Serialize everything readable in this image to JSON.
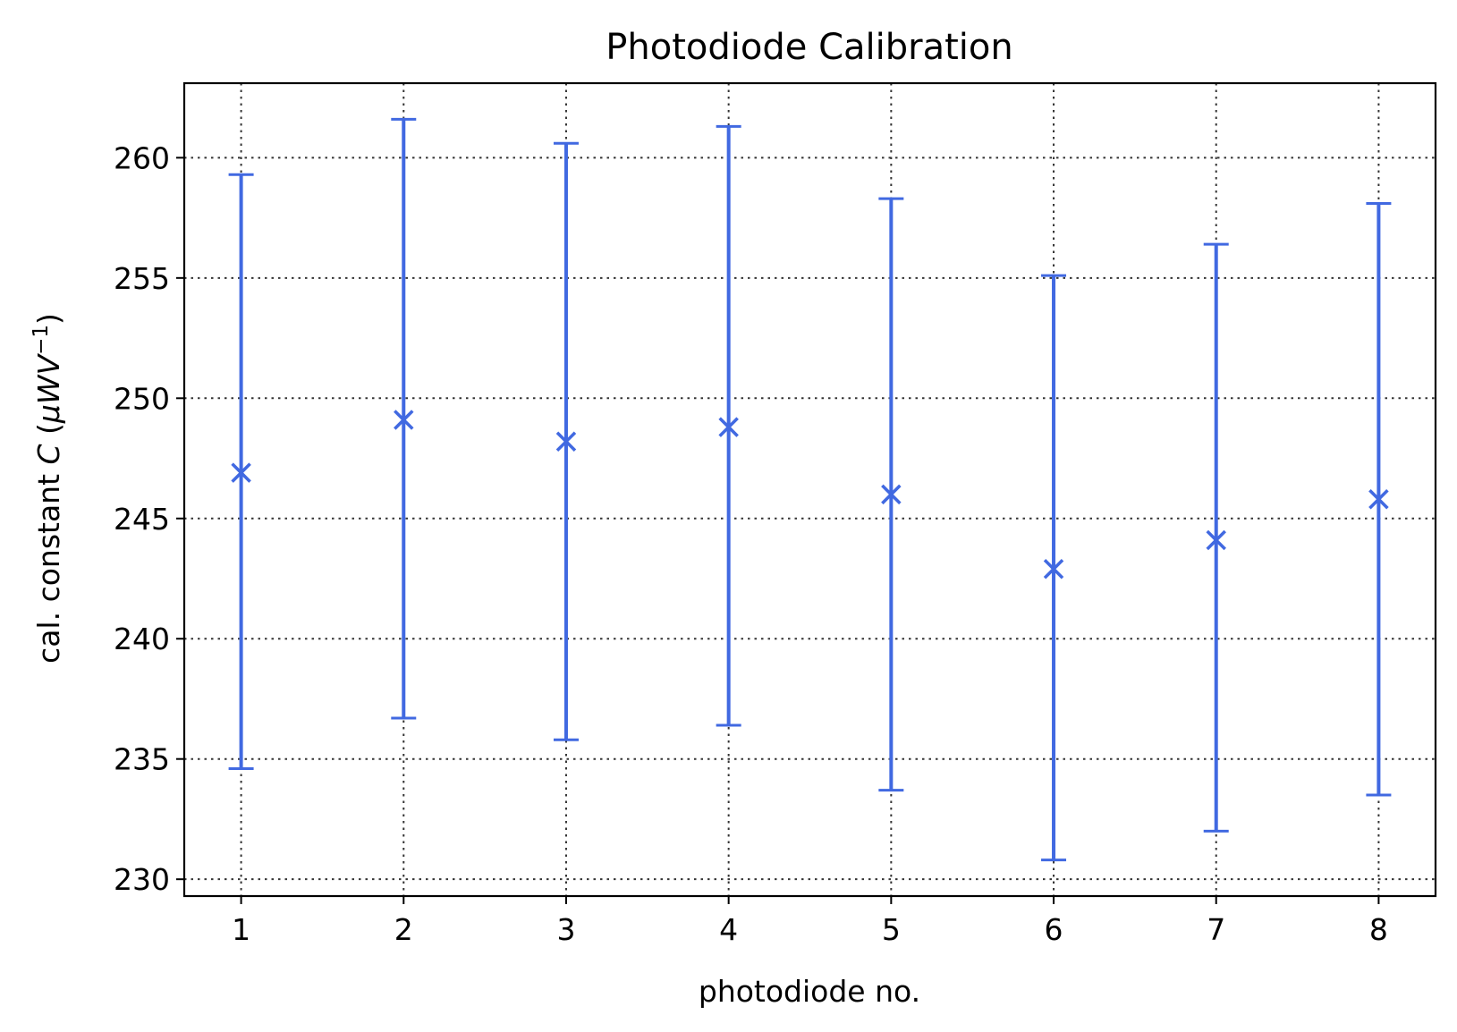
{
  "chart_data": {
    "type": "scatter",
    "title": "Photodiode Calibration",
    "xlabel": "photodiode no.",
    "ylabel_prefix": "cal. constant ",
    "ylabel_var": "C",
    "ylabel_open": " (",
    "ylabel_mu": "μ",
    "ylabel_w": "W",
    "ylabel_v": "V",
    "ylabel_exp": "−1",
    "ylabel_close": ")",
    "x": [
      1,
      2,
      3,
      4,
      5,
      6,
      7,
      8
    ],
    "y": [
      246.9,
      249.1,
      248.2,
      248.8,
      246.0,
      242.9,
      244.1,
      245.8
    ],
    "yerr_low": [
      234.6,
      236.7,
      235.8,
      236.4,
      233.7,
      230.8,
      232.0,
      233.5
    ],
    "yerr_high": [
      259.3,
      261.6,
      260.6,
      261.3,
      258.3,
      255.1,
      256.4,
      258.1
    ],
    "xlim": [
      0.65,
      8.35
    ],
    "ylim": [
      229.3,
      263.1
    ],
    "xticks": [
      1,
      2,
      3,
      4,
      5,
      6,
      7,
      8
    ],
    "yticks": [
      230,
      235,
      240,
      245,
      250,
      255,
      260
    ],
    "grid": true,
    "marker": "x",
    "color": "#4169e1"
  }
}
